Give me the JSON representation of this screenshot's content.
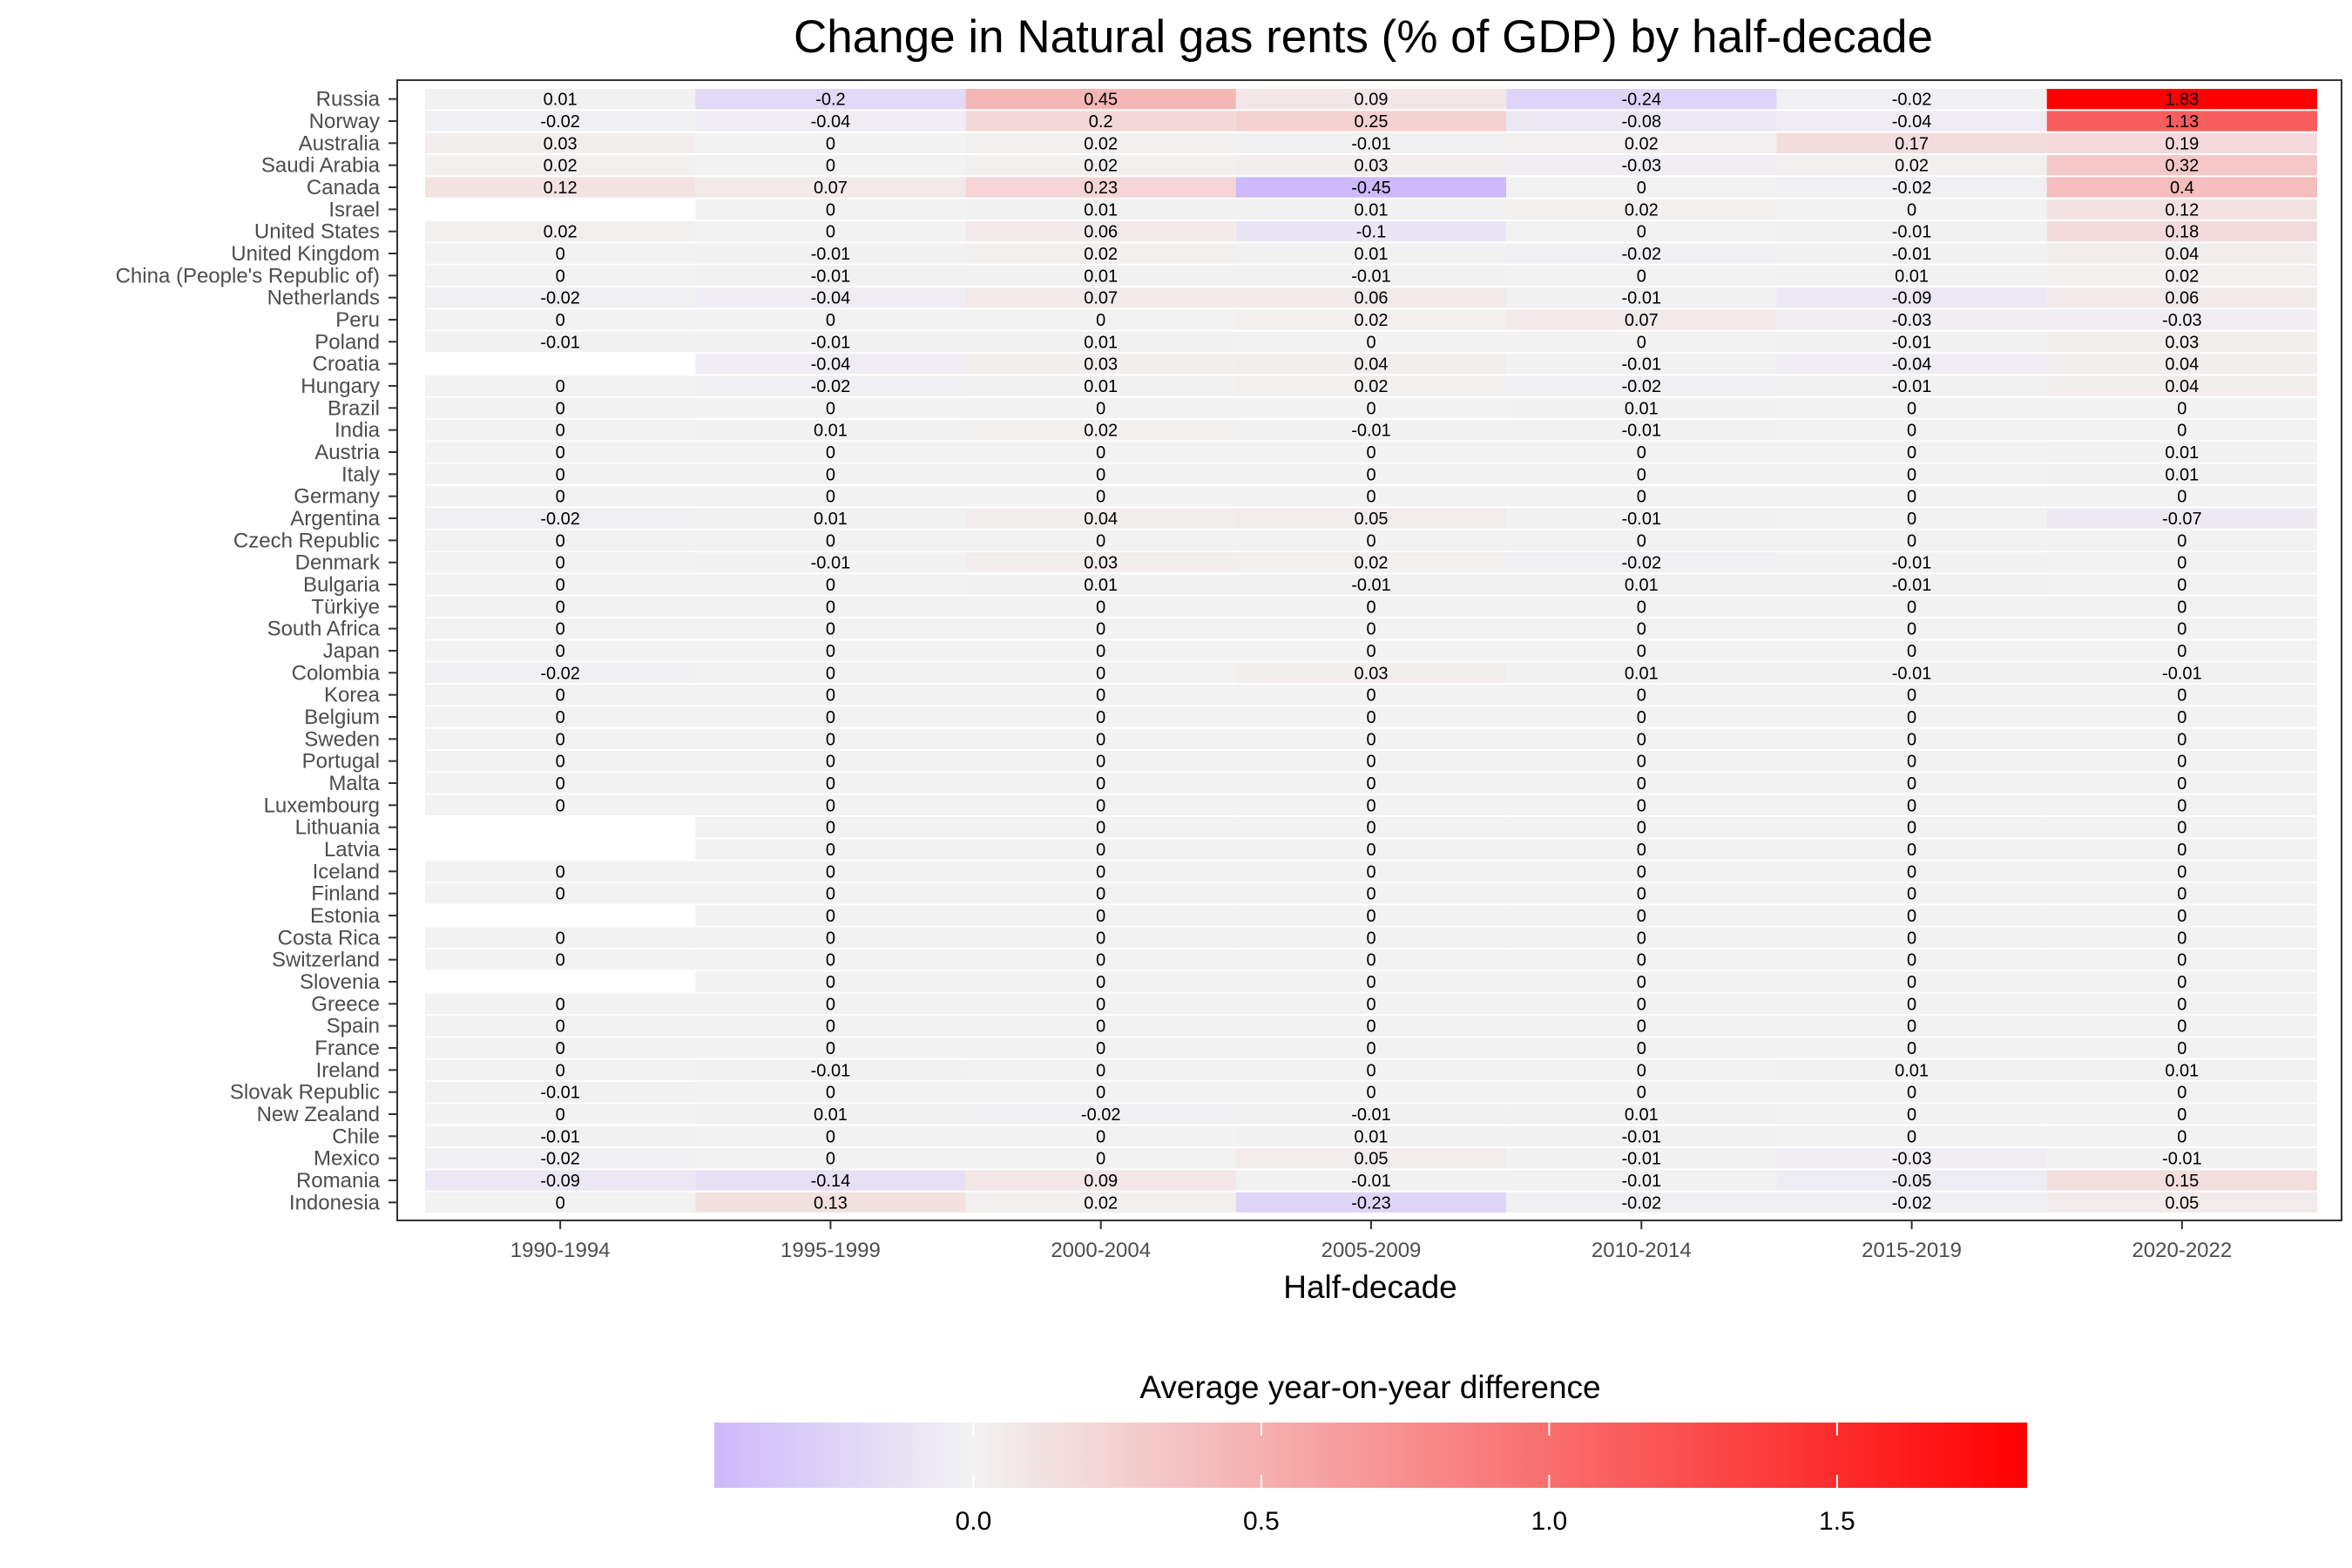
{
  "chart_data": {
    "type": "heatmap",
    "title": "Change in Natural gas rents (% of GDP) by half-decade",
    "xlabel": "Half-decade",
    "ylabel": "",
    "x_categories": [
      "1990-1994",
      "1995-1999",
      "2000-2004",
      "2005-2009",
      "2010-2014",
      "2015-2019",
      "2020-2022"
    ],
    "y_categories": [
      "Russia",
      "Norway",
      "Australia",
      "Saudi Arabia",
      "Canada",
      "Israel",
      "United States",
      "United Kingdom",
      "China (People's Republic of)",
      "Netherlands",
      "Peru",
      "Poland",
      "Croatia",
      "Hungary",
      "Brazil",
      "India",
      "Austria",
      "Italy",
      "Germany",
      "Argentina",
      "Czech Republic",
      "Denmark",
      "Bulgaria",
      "Türkiye",
      "South Africa",
      "Japan",
      "Colombia",
      "Korea",
      "Belgium",
      "Sweden",
      "Portugal",
      "Malta",
      "Luxembourg",
      "Lithuania",
      "Latvia",
      "Iceland",
      "Finland",
      "Estonia",
      "Costa Rica",
      "Switzerland",
      "Slovenia",
      "Greece",
      "Spain",
      "France",
      "Ireland",
      "Slovak Republic",
      "New Zealand",
      "Chile",
      "Mexico",
      "Romania",
      "Indonesia"
    ],
    "values": [
      [
        "0.01",
        "-0.2",
        "0.45",
        "0.09",
        "-0.24",
        "-0.02",
        "1.83"
      ],
      [
        "-0.02",
        "-0.04",
        "0.2",
        "0.25",
        "-0.08",
        "-0.04",
        "1.13"
      ],
      [
        "0.03",
        "0",
        "0.02",
        "-0.01",
        "0.02",
        "0.17",
        "0.19"
      ],
      [
        "0.02",
        "0",
        "0.02",
        "0.03",
        "-0.03",
        "0.02",
        "0.32"
      ],
      [
        "0.12",
        "0.07",
        "0.23",
        "-0.45",
        "0",
        "-0.02",
        "0.4"
      ],
      [
        null,
        "0",
        "0.01",
        "0.01",
        "0.02",
        "0",
        "0.12"
      ],
      [
        "0.02",
        "0",
        "0.06",
        "-0.1",
        "0",
        "-0.01",
        "0.18"
      ],
      [
        "0",
        "-0.01",
        "0.02",
        "0.01",
        "-0.02",
        "-0.01",
        "0.04"
      ],
      [
        "0",
        "-0.01",
        "0.01",
        "-0.01",
        "0",
        "0.01",
        "0.02"
      ],
      [
        "-0.02",
        "-0.04",
        "0.07",
        "0.06",
        "-0.01",
        "-0.09",
        "0.06"
      ],
      [
        "0",
        "0",
        "0",
        "0.02",
        "0.07",
        "-0.03",
        "-0.03"
      ],
      [
        "-0.01",
        "-0.01",
        "0.01",
        "0",
        "0",
        "-0.01",
        "0.03"
      ],
      [
        null,
        "-0.04",
        "0.03",
        "0.04",
        "-0.01",
        "-0.04",
        "0.04"
      ],
      [
        "0",
        "-0.02",
        "0.01",
        "0.02",
        "-0.02",
        "-0.01",
        "0.04"
      ],
      [
        "0",
        "0",
        "0",
        "0",
        "0.01",
        "0",
        "0"
      ],
      [
        "0",
        "0.01",
        "0.02",
        "-0.01",
        "-0.01",
        "0",
        "0"
      ],
      [
        "0",
        "0",
        "0",
        "0",
        "0",
        "0",
        "0.01"
      ],
      [
        "0",
        "0",
        "0",
        "0",
        "0",
        "0",
        "0.01"
      ],
      [
        "0",
        "0",
        "0",
        "0",
        "0",
        "0",
        "0"
      ],
      [
        "-0.02",
        "0.01",
        "0.04",
        "0.05",
        "-0.01",
        "0",
        "-0.07"
      ],
      [
        "0",
        "0",
        "0",
        "0",
        "0",
        "0",
        "0"
      ],
      [
        "0",
        "-0.01",
        "0.03",
        "0.02",
        "-0.02",
        "-0.01",
        "0"
      ],
      [
        "0",
        "0",
        "0.01",
        "-0.01",
        "0.01",
        "-0.01",
        "0"
      ],
      [
        "0",
        "0",
        "0",
        "0",
        "0",
        "0",
        "0"
      ],
      [
        "0",
        "0",
        "0",
        "0",
        "0",
        "0",
        "0"
      ],
      [
        "0",
        "0",
        "0",
        "0",
        "0",
        "0",
        "0"
      ],
      [
        "-0.02",
        "0",
        "0",
        "0.03",
        "0.01",
        "-0.01",
        "-0.01"
      ],
      [
        "0",
        "0",
        "0",
        "0",
        "0",
        "0",
        "0"
      ],
      [
        "0",
        "0",
        "0",
        "0",
        "0",
        "0",
        "0"
      ],
      [
        "0",
        "0",
        "0",
        "0",
        "0",
        "0",
        "0"
      ],
      [
        "0",
        "0",
        "0",
        "0",
        "0",
        "0",
        "0"
      ],
      [
        "0",
        "0",
        "0",
        "0",
        "0",
        "0",
        "0"
      ],
      [
        "0",
        "0",
        "0",
        "0",
        "0",
        "0",
        "0"
      ],
      [
        null,
        "0",
        "0",
        "0",
        "0",
        "0",
        "0"
      ],
      [
        null,
        "0",
        "0",
        "0",
        "0",
        "0",
        "0"
      ],
      [
        "0",
        "0",
        "0",
        "0",
        "0",
        "0",
        "0"
      ],
      [
        "0",
        "0",
        "0",
        "0",
        "0",
        "0",
        "0"
      ],
      [
        null,
        "0",
        "0",
        "0",
        "0",
        "0",
        "0"
      ],
      [
        "0",
        "0",
        "0",
        "0",
        "0",
        "0",
        "0"
      ],
      [
        "0",
        "0",
        "0",
        "0",
        "0",
        "0",
        "0"
      ],
      [
        null,
        "0",
        "0",
        "0",
        "0",
        "0",
        "0"
      ],
      [
        "0",
        "0",
        "0",
        "0",
        "0",
        "0",
        "0"
      ],
      [
        "0",
        "0",
        "0",
        "0",
        "0",
        "0",
        "0"
      ],
      [
        "0",
        "0",
        "0",
        "0",
        "0",
        "0",
        "0"
      ],
      [
        "0",
        "-0.01",
        "0",
        "0",
        "0",
        "0.01",
        "0.01"
      ],
      [
        "-0.01",
        "0",
        "0",
        "0",
        "0",
        "0",
        "0"
      ],
      [
        "0",
        "0.01",
        "-0.02",
        "-0.01",
        "0.01",
        "0",
        "0"
      ],
      [
        "-0.01",
        "0",
        "0",
        "0.01",
        "-0.01",
        "0",
        "0"
      ],
      [
        "-0.02",
        "0",
        "0",
        "0.05",
        "-0.01",
        "-0.03",
        "-0.01"
      ],
      [
        "-0.09",
        "-0.14",
        "0.09",
        "-0.01",
        "-0.01",
        "-0.05",
        "0.15"
      ],
      [
        "0",
        "0.13",
        "0.02",
        "-0.23",
        "-0.02",
        "-0.02",
        "0.05"
      ]
    ],
    "color_scale": {
      "type": "diverging",
      "domain": [
        -0.45,
        1.83
      ],
      "midpoint": 0,
      "low_color": "#cdb9fb",
      "mid_color": "#f2f2f2",
      "high_color": "#ff0000",
      "missing_color": "#ffffff"
    },
    "legend": {
      "title": "Average year-on-year difference",
      "position": "bottom",
      "ticks": [
        0.0,
        0.5,
        1.0,
        1.5
      ],
      "tick_labels": [
        "0.0",
        "0.5",
        "1.0",
        "1.5"
      ]
    },
    "grid": false
  }
}
